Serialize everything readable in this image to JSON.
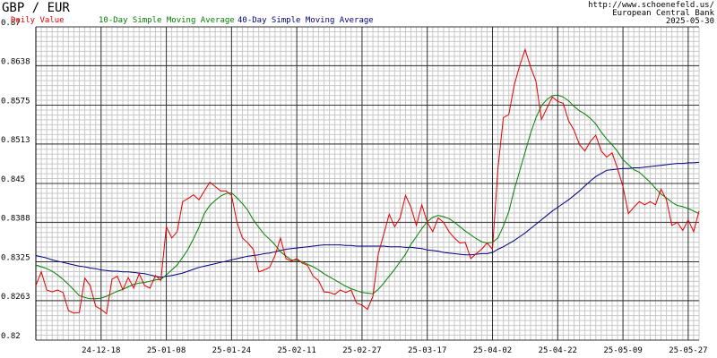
{
  "chart_data": {
    "type": "line",
    "title": "GBP / EUR",
    "source": [
      "http://www.schoenefeld.us/",
      "European Central Bank",
      "2025-05-30"
    ],
    "categories": [
      null,
      null,
      null,
      null,
      null,
      null,
      null,
      null,
      null,
      null,
      null,
      null,
      "24-12-18",
      null,
      null,
      null,
      null,
      null,
      null,
      null,
      null,
      null,
      null,
      null,
      "25-01-08",
      null,
      null,
      null,
      null,
      null,
      null,
      null,
      null,
      null,
      null,
      null,
      "25-01-24",
      null,
      null,
      null,
      null,
      null,
      null,
      null,
      null,
      null,
      null,
      null,
      "25-02-11",
      null,
      null,
      null,
      null,
      null,
      null,
      null,
      null,
      null,
      null,
      null,
      "25-02-27",
      null,
      null,
      null,
      null,
      null,
      null,
      null,
      null,
      null,
      null,
      null,
      "25-03-17",
      null,
      null,
      null,
      null,
      null,
      null,
      null,
      null,
      null,
      null,
      null,
      "25-04-02",
      null,
      null,
      null,
      null,
      null,
      null,
      null,
      null,
      null,
      null,
      null,
      "25-04-22",
      null,
      null,
      null,
      null,
      null,
      null,
      null,
      null,
      null,
      null,
      null,
      "25-05-09",
      null,
      null,
      null,
      null,
      null,
      null,
      null,
      null,
      null,
      null,
      null,
      "25-05-27",
      null,
      null
    ],
    "series": [
      {
        "name": "Daily Value",
        "color": "#e00000",
        "values": [
          0.8287,
          0.8309,
          0.828,
          0.8277,
          0.828,
          0.8276,
          0.8247,
          0.8243,
          0.8244,
          0.8299,
          0.8287,
          0.8254,
          0.8249,
          0.8242,
          0.8297,
          0.8302,
          0.828,
          0.83,
          0.8283,
          0.8306,
          0.8287,
          0.8283,
          0.8303,
          0.8295,
          0.8381,
          0.8363,
          0.8373,
          0.8421,
          0.8426,
          0.8432,
          0.8424,
          0.8438,
          0.8452,
          0.8445,
          0.8438,
          0.8438,
          0.8431,
          0.8388,
          0.8363,
          0.8355,
          0.8345,
          0.8309,
          0.8312,
          0.8316,
          0.8335,
          0.8363,
          0.833,
          0.8326,
          0.833,
          0.8323,
          0.8319,
          0.8302,
          0.8295,
          0.8277,
          0.8276,
          0.8273,
          0.828,
          0.8276,
          0.828,
          0.8259,
          0.8256,
          0.8249,
          0.827,
          0.8338,
          0.8369,
          0.8401,
          0.8381,
          0.8395,
          0.8431,
          0.8412,
          0.8383,
          0.8416,
          0.8388,
          0.8373,
          0.8395,
          0.8388,
          0.8373,
          0.8363,
          0.8355,
          0.8356,
          0.833,
          0.8338,
          0.8345,
          0.8355,
          0.8345,
          0.8474,
          0.8555,
          0.856,
          0.8607,
          0.8638,
          0.8664,
          0.8636,
          0.8613,
          0.8552,
          0.857,
          0.8588,
          0.8581,
          0.8578,
          0.855,
          0.8535,
          0.8512,
          0.8502,
          0.8517,
          0.8527,
          0.8502,
          0.8492,
          0.8499,
          0.8474,
          0.8445,
          0.8402,
          0.8412,
          0.8421,
          0.8416,
          0.8421,
          0.8416,
          0.8441,
          0.8424,
          0.8383,
          0.8388,
          0.8375,
          0.8392,
          0.8373,
          0.8406
        ]
      },
      {
        "name": "10-Day Simple Moving Average",
        "color": "#008000",
        "values": [
          0.832,
          0.8317,
          0.8314,
          0.831,
          0.8304,
          0.8297,
          0.8289,
          0.828,
          0.8271,
          0.8268,
          0.8266,
          0.8266,
          0.8267,
          0.827,
          0.8274,
          0.8278,
          0.8281,
          0.8285,
          0.8289,
          0.8291,
          0.8292,
          0.8294,
          0.8296,
          0.8297,
          0.8304,
          0.8312,
          0.832,
          0.8332,
          0.8345,
          0.8362,
          0.838,
          0.8402,
          0.8415,
          0.8423,
          0.843,
          0.8434,
          0.8435,
          0.8427,
          0.8418,
          0.8407,
          0.8392,
          0.838,
          0.8369,
          0.8361,
          0.8352,
          0.8341,
          0.8334,
          0.8328,
          0.8327,
          0.8325,
          0.8321,
          0.8317,
          0.8312,
          0.8306,
          0.8301,
          0.8296,
          0.8291,
          0.8286,
          0.8282,
          0.8279,
          0.8276,
          0.8275,
          0.8274,
          0.8281,
          0.8291,
          0.8302,
          0.8313,
          0.8325,
          0.8337,
          0.8353,
          0.8365,
          0.8378,
          0.8389,
          0.8396,
          0.8399,
          0.8397,
          0.8394,
          0.8388,
          0.8381,
          0.8374,
          0.8368,
          0.8362,
          0.8357,
          0.8355,
          0.8356,
          0.8363,
          0.8382,
          0.8405,
          0.844,
          0.847,
          0.85,
          0.853,
          0.8555,
          0.8574,
          0.8584,
          0.859,
          0.8591,
          0.8588,
          0.8582,
          0.8573,
          0.8566,
          0.8561,
          0.8554,
          0.8545,
          0.8532,
          0.8521,
          0.8512,
          0.8501,
          0.8488,
          0.848,
          0.8472,
          0.8468,
          0.846,
          0.8452,
          0.8442,
          0.8433,
          0.8427,
          0.842,
          0.8415,
          0.8413,
          0.841,
          0.8406,
          0.8402
        ]
      },
      {
        "name": "40-Day Simple Moving Average",
        "color": "#000080",
        "values": [
          0.8335,
          0.8333,
          0.8331,
          0.8328,
          0.8326,
          0.8324,
          0.8322,
          0.832,
          0.8318,
          0.8317,
          0.8315,
          0.8314,
          0.8312,
          0.8311,
          0.831,
          0.831,
          0.8309,
          0.8309,
          0.8308,
          0.8307,
          0.8306,
          0.8304,
          0.8302,
          0.83,
          0.8302,
          0.8303,
          0.8305,
          0.8307,
          0.831,
          0.8313,
          0.8316,
          0.8318,
          0.832,
          0.8322,
          0.8324,
          0.8326,
          0.8328,
          0.833,
          0.8332,
          0.8334,
          0.8335,
          0.8336,
          0.8338,
          0.8339,
          0.8341,
          0.8343,
          0.8345,
          0.8346,
          0.8347,
          0.8348,
          0.8349,
          0.835,
          0.8351,
          0.8352,
          0.8352,
          0.8352,
          0.8352,
          0.8351,
          0.8351,
          0.835,
          0.835,
          0.835,
          0.835,
          0.835,
          0.835,
          0.8349,
          0.8349,
          0.8349,
          0.8348,
          0.8348,
          0.8347,
          0.8346,
          0.8344,
          0.8343,
          0.8342,
          0.834,
          0.8339,
          0.8338,
          0.8337,
          0.8336,
          0.8336,
          0.8337,
          0.8338,
          0.8338,
          0.834,
          0.8345,
          0.8349,
          0.8354,
          0.8359,
          0.8365,
          0.8371,
          0.8378,
          0.8385,
          0.8392,
          0.8399,
          0.8406,
          0.8412,
          0.8418,
          0.8424,
          0.8431,
          0.8438,
          0.8446,
          0.8454,
          0.8461,
          0.8466,
          0.8471,
          0.8472,
          0.8473,
          0.8474,
          0.8474,
          0.8475,
          0.8475,
          0.8476,
          0.8477,
          0.8478,
          0.8479,
          0.848,
          0.8481,
          0.8482,
          0.8482,
          0.8483,
          0.8483,
          0.8484
        ]
      }
    ],
    "ylim": [
      0.82,
      0.87
    ],
    "yticks": [
      0.82,
      0.8263,
      0.8325,
      0.8388,
      0.845,
      0.8513,
      0.8575,
      0.8638,
      0.87
    ],
    "grid": true
  }
}
